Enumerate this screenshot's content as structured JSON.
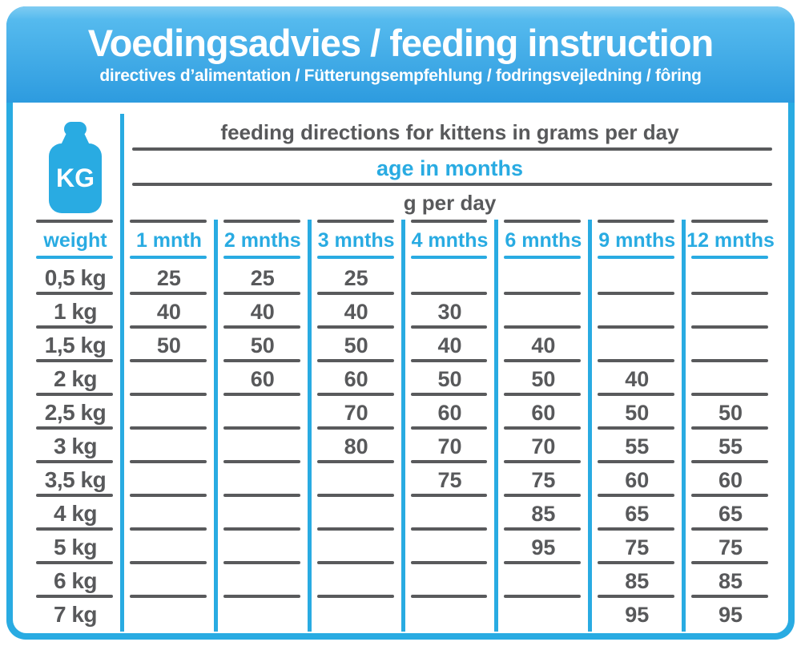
{
  "header": {
    "title": "Voedingsadvies / feeding instruction",
    "subtitle": "directives d’alimentation / Fütterungsempfehlung / fodringsvejledning / fôring"
  },
  "table": {
    "kg_badge": "KG",
    "span_headers": {
      "row1": "feeding directions for kittens in grams per day",
      "row2": "age in months",
      "row3": "g per day"
    },
    "columns": [
      "weight",
      "1 mnth",
      "2 mnths",
      "3 mnths",
      "4 mnths",
      "6 mnths",
      "9 mnths",
      "12 mnths"
    ],
    "rows": [
      {
        "weight": "0,5 kg",
        "values": [
          "25",
          "25",
          "25",
          "",
          "",
          "",
          ""
        ]
      },
      {
        "weight": "1 kg",
        "values": [
          "40",
          "40",
          "40",
          "30",
          "",
          "",
          ""
        ]
      },
      {
        "weight": "1,5 kg",
        "values": [
          "50",
          "50",
          "50",
          "40",
          "40",
          "",
          ""
        ]
      },
      {
        "weight": "2 kg",
        "values": [
          "",
          "60",
          "60",
          "50",
          "50",
          "40",
          ""
        ]
      },
      {
        "weight": "2,5 kg",
        "values": [
          "",
          "",
          "70",
          "60",
          "60",
          "50",
          "50"
        ]
      },
      {
        "weight": "3 kg",
        "values": [
          "",
          "",
          "80",
          "70",
          "70",
          "55",
          "55"
        ]
      },
      {
        "weight": "3,5 kg",
        "values": [
          "",
          "",
          "",
          "75",
          "75",
          "60",
          "60"
        ]
      },
      {
        "weight": "4 kg",
        "values": [
          "",
          "",
          "",
          "",
          "85",
          "65",
          "65"
        ]
      },
      {
        "weight": "5 kg",
        "values": [
          "",
          "",
          "",
          "",
          "95",
          "75",
          "75"
        ]
      },
      {
        "weight": "6 kg",
        "values": [
          "",
          "",
          "",
          "",
          "",
          "85",
          "85"
        ]
      },
      {
        "weight": "7 kg",
        "values": [
          "",
          "",
          "",
          "",
          "",
          "95",
          "95"
        ]
      }
    ]
  },
  "colors": {
    "cyan": "#29abe2",
    "gray": "#58595b",
    "line_gray": "#595a5c",
    "band_top": "#7fccf2",
    "band_mid": "#55baee",
    "band_bottom": "#2d9bdf"
  }
}
